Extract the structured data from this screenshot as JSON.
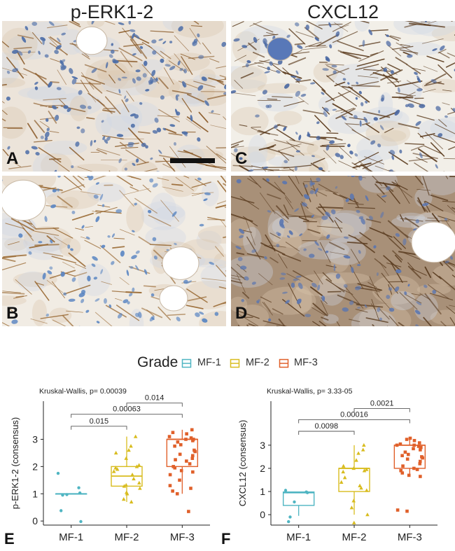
{
  "figure": {
    "col_titles": [
      "p-ERK1-2",
      "CXCL12"
    ],
    "panel_labels": [
      "A",
      "B",
      "C",
      "D"
    ],
    "plot_labels": [
      "E",
      "F"
    ]
  },
  "legend": {
    "title": "Grade",
    "items": [
      {
        "label": "MF-1",
        "color": "#4fb5c2"
      },
      {
        "label": "MF-2",
        "color": "#d8bc1e"
      },
      {
        "label": "MF-3",
        "color": "#e0602a"
      }
    ]
  },
  "chart_data": [
    {
      "type": "box",
      "title": "Kruskal-Wallis, p= 0.00039",
      "ylabel": "p-ERK1-2 (consensus)",
      "categories": [
        "MF-1",
        "MF-2",
        "MF-3"
      ],
      "ylim": [
        -0.15,
        4.4
      ],
      "yticks": [
        0,
        1,
        2,
        3
      ],
      "boxes": [
        {
          "q1": 1.0,
          "median": 1.0,
          "q3": 1.0,
          "low": 1.0,
          "high": 1.0
        },
        {
          "q1": 1.28,
          "median": 1.65,
          "q3": 2.0,
          "low": 0.7,
          "high": 3.1
        },
        {
          "q1": 2.0,
          "median": 3.0,
          "q3": 3.0,
          "low": 1.0,
          "high": 3.35
        }
      ],
      "points": [
        [
          1.75,
          1.22,
          1.03,
          0.97,
          0.95,
          0.38,
          -0.02
        ],
        [
          3.1,
          2.75,
          2.6,
          2.5,
          2.3,
          2.05,
          2.0,
          1.95,
          1.9,
          1.82,
          1.7,
          1.55,
          1.4,
          1.32,
          1.28,
          1.2,
          1.05,
          1.0,
          0.8,
          0.7
        ],
        [
          3.35,
          3.25,
          3.2,
          3.1,
          3.05,
          3.0,
          3.0,
          2.95,
          2.9,
          2.8,
          2.75,
          2.6,
          2.55,
          2.45,
          2.4,
          2.3,
          2.25,
          2.2,
          2.1,
          2.0,
          1.95,
          1.85,
          1.8,
          1.7,
          1.5,
          1.3,
          1.2,
          1.1,
          1.0,
          0.35
        ]
      ],
      "comparisons": [
        {
          "from": 0,
          "to": 1,
          "y": 3.48,
          "label": "0.015"
        },
        {
          "from": 0,
          "to": 2,
          "y": 3.92,
          "label": "0.00063"
        },
        {
          "from": 1,
          "to": 2,
          "y": 4.33,
          "label": "0.014"
        }
      ]
    },
    {
      "type": "box",
      "title": "Kruskal-Wallis, p= 3.33-05",
      "ylabel": "CXCL12 (consensus)",
      "categories": [
        "MF-1",
        "MF-2",
        "MF-3"
      ],
      "ylim": [
        -0.45,
        4.9
      ],
      "yticks": [
        0,
        1,
        2,
        3
      ],
      "boxes": [
        {
          "q1": 0.4,
          "median": 0.95,
          "q3": 0.98,
          "low": -0.05,
          "high": 1.0
        },
        {
          "q1": 1.0,
          "median": 2.0,
          "q3": 2.0,
          "low": 0.0,
          "high": 3.0
        },
        {
          "q1": 2.0,
          "median": 3.0,
          "q3": 3.0,
          "low": 1.65,
          "high": 3.3
        }
      ],
      "points": [
        [
          1.05,
          0.98,
          0.95,
          0.55,
          -0.1,
          -0.3
        ],
        [
          3.0,
          2.8,
          2.65,
          2.35,
          2.1,
          2.0,
          1.95,
          1.9,
          1.85,
          1.6,
          1.4,
          1.25,
          1.15,
          1.05,
          0.6,
          0.3,
          0.0,
          -0.35
        ],
        [
          3.3,
          3.25,
          3.2,
          3.1,
          3.05,
          3.0,
          3.0,
          2.95,
          2.9,
          2.85,
          2.8,
          2.7,
          2.6,
          2.55,
          2.5,
          2.45,
          2.4,
          2.3,
          2.2,
          2.1,
          2.0,
          1.95,
          1.9,
          1.8,
          1.7,
          1.65,
          0.2,
          0.15
        ]
      ],
      "comparisons": [
        {
          "from": 0,
          "to": 1,
          "y": 3.6,
          "label": "0.0098"
        },
        {
          "from": 0,
          "to": 2,
          "y": 4.1,
          "label": "0.00016"
        },
        {
          "from": 1,
          "to": 2,
          "y": 4.58,
          "label": "0.0021"
        }
      ]
    }
  ]
}
